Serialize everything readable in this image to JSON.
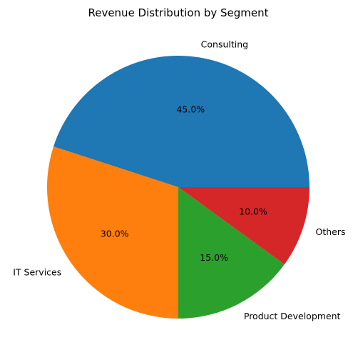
{
  "chart_data": {
    "type": "pie",
    "title": "Revenue Distribution by Segment",
    "categories": [
      "Consulting",
      "IT Services",
      "Product Development",
      "Others"
    ],
    "values": [
      45.0,
      30.0,
      15.0,
      10.0
    ],
    "percent_labels": [
      "45.0%",
      "30.0%",
      "15.0%",
      "10.0%"
    ],
    "colors": [
      "#1f77b4",
      "#ff7f0e",
      "#2ca02c",
      "#d62728"
    ],
    "start_angle_deg": 0,
    "direction": "counterclockwise",
    "legend": "none"
  }
}
